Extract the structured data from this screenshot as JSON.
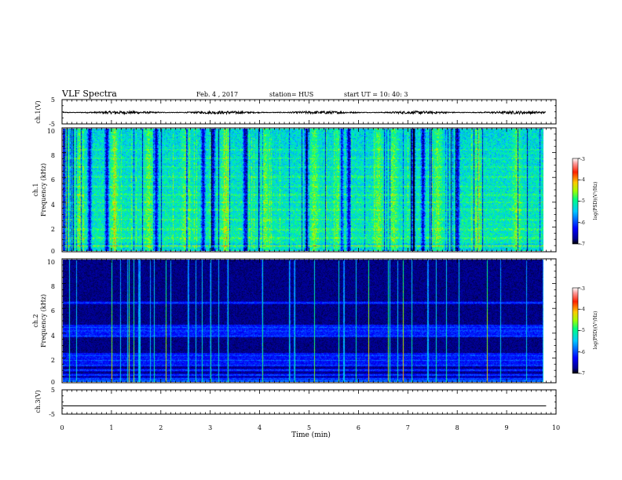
{
  "header": {
    "title": "VLF Spectra",
    "date": "Feb. 4 , 2017",
    "station": "station= HUS",
    "start": "start  UT  =    10: 40: 3"
  },
  "chart_data": [
    {
      "type": "line",
      "name": "ch1-waveform",
      "ylabel": "ch.1(V)",
      "ylim": [
        -5,
        5
      ],
      "yticks": [
        "5",
        "-5"
      ],
      "baseline": -0.3,
      "noise_amplitude": 0.6
    },
    {
      "type": "heatmap",
      "name": "ch1-spectrogram",
      "ylabel_line1": "ch.1",
      "ylabel_line2": "Frequency (kHz)",
      "ylim": [
        0,
        10
      ],
      "yticks": [
        "0",
        "2",
        "4",
        "6",
        "8",
        "10"
      ],
      "colorbar": {
        "label": "log(PSD)(V²/Hz)",
        "ticks": [
          "-3",
          "-4",
          "-5",
          "-6",
          "-7"
        ],
        "range": [
          -7,
          -3
        ]
      },
      "dark_minutes": [
        0.02,
        0.55,
        0.9,
        1.9,
        2.85,
        3.05,
        3.7,
        4.95,
        5.65,
        5.8,
        7.1,
        7.3,
        8.0
      ],
      "bright_minutes": [
        0.35,
        1.05,
        1.75,
        2.5,
        3.3,
        4.1,
        5.1,
        5.6,
        6.4,
        6.7,
        7.6,
        8.4,
        9.2
      ]
    },
    {
      "type": "heatmap",
      "name": "ch2-spectrogram",
      "ylabel_line1": "ch.2",
      "ylabel_line2": "Frequency (kHz)",
      "ylim": [
        0,
        10
      ],
      "yticks": [
        "0",
        "2",
        "4",
        "6",
        "8",
        "10"
      ],
      "colorbar": {
        "label": "log(PSD)(V²/Hz)",
        "ticks": [
          "-3",
          "-4",
          "-5",
          "-6",
          "-7"
        ],
        "range": [
          -7,
          -3
        ]
      },
      "horizontal_bands_khz": [
        0.3,
        0.6,
        1.0,
        1.4,
        1.8,
        2.2,
        3.8,
        4.2,
        4.5,
        6.5
      ],
      "impulse_minutes": [
        1.0,
        1.35,
        1.45,
        1.55,
        2.1,
        2.55,
        3.0,
        3.35,
        4.05,
        4.6,
        4.7,
        5.1,
        5.6,
        5.7,
        6.2,
        6.6,
        6.9,
        7.4,
        8.6
      ]
    },
    {
      "type": "line",
      "name": "ch3-waveform",
      "ylabel": "ch.3(V)",
      "ylim": [
        -5,
        5
      ],
      "yticks": [
        "5",
        "-5"
      ],
      "baseline": -1.6
    }
  ],
  "xaxis": {
    "label": "Time (min)",
    "xlim": [
      0,
      10
    ],
    "ticks": [
      "0",
      "1",
      "2",
      "3",
      "4",
      "5",
      "6",
      "7",
      "8",
      "9",
      "10"
    ],
    "data_end": 9.8
  }
}
